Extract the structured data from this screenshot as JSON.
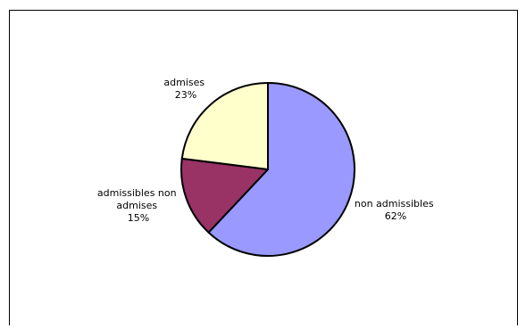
{
  "chart_data": {
    "type": "pie",
    "slices": [
      {
        "label": "non admissibles",
        "value": 62,
        "pct_label": "62%",
        "color": "#9999ff"
      },
      {
        "label": "admissibles non admises",
        "value": 15,
        "pct_label": "15%",
        "color": "#993366"
      },
      {
        "label": "admises",
        "value": 23,
        "pct_label": "23%",
        "color": "#ffffcc"
      }
    ],
    "start_angle_deg": 0,
    "direction": "clockwise",
    "legend": "none"
  },
  "labels": {
    "non_admissibles": {
      "line1": "non admissibles",
      "line2": "62%"
    },
    "admissibles_non_admises": {
      "line1": "admissibles non",
      "line2": "admises",
      "line3": "15%"
    },
    "admises": {
      "line1": "admises",
      "line2": "23%"
    }
  }
}
